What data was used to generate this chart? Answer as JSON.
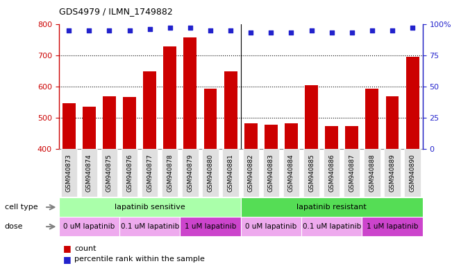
{
  "title": "GDS4979 / ILMN_1749882",
  "samples": [
    "GSM940873",
    "GSM940874",
    "GSM940875",
    "GSM940876",
    "GSM940877",
    "GSM940878",
    "GSM940879",
    "GSM940880",
    "GSM940881",
    "GSM940882",
    "GSM940883",
    "GSM940884",
    "GSM940885",
    "GSM940886",
    "GSM940887",
    "GSM940888",
    "GSM940889",
    "GSM940890"
  ],
  "bar_values": [
    547,
    535,
    569,
    567,
    648,
    728,
    757,
    592,
    648,
    481,
    477,
    481,
    604,
    474,
    473,
    593,
    569,
    695
  ],
  "percentile_values": [
    95,
    95,
    95,
    95,
    96,
    97,
    97,
    95,
    95,
    93,
    93,
    93,
    95,
    93,
    93,
    95,
    95,
    97
  ],
  "bar_color": "#cc0000",
  "dot_color": "#2222cc",
  "ylim_left": [
    400,
    800
  ],
  "ylim_right": [
    0,
    100
  ],
  "yticks_left": [
    400,
    500,
    600,
    700,
    800
  ],
  "yticks_right": [
    0,
    25,
    50,
    75,
    100
  ],
  "left_axis_color": "#cc0000",
  "right_axis_color": "#2222cc",
  "grid_color": "#000000",
  "cell_type_data": [
    {
      "label": "lapatinib sensitive",
      "start": 0,
      "end": 9,
      "color": "#aaffaa"
    },
    {
      "label": "lapatinib resistant",
      "start": 9,
      "end": 18,
      "color": "#55dd55"
    }
  ],
  "dose_data": [
    {
      "label": "0 uM lapatinib",
      "start": 0,
      "end": 3,
      "color": "#eeaaee"
    },
    {
      "label": "0.1 uM lapatinib",
      "start": 3,
      "end": 6,
      "color": "#eeaaee"
    },
    {
      "label": "1 uM lapatinib",
      "start": 6,
      "end": 9,
      "color": "#cc44cc"
    },
    {
      "label": "0 uM lapatinib",
      "start": 9,
      "end": 12,
      "color": "#eeaaee"
    },
    {
      "label": "0.1 uM lapatinib",
      "start": 12,
      "end": 15,
      "color": "#eeaaee"
    },
    {
      "label": "1 uM lapatinib",
      "start": 15,
      "end": 18,
      "color": "#cc44cc"
    }
  ],
  "n_samples": 18,
  "separator_idx": 8.5
}
